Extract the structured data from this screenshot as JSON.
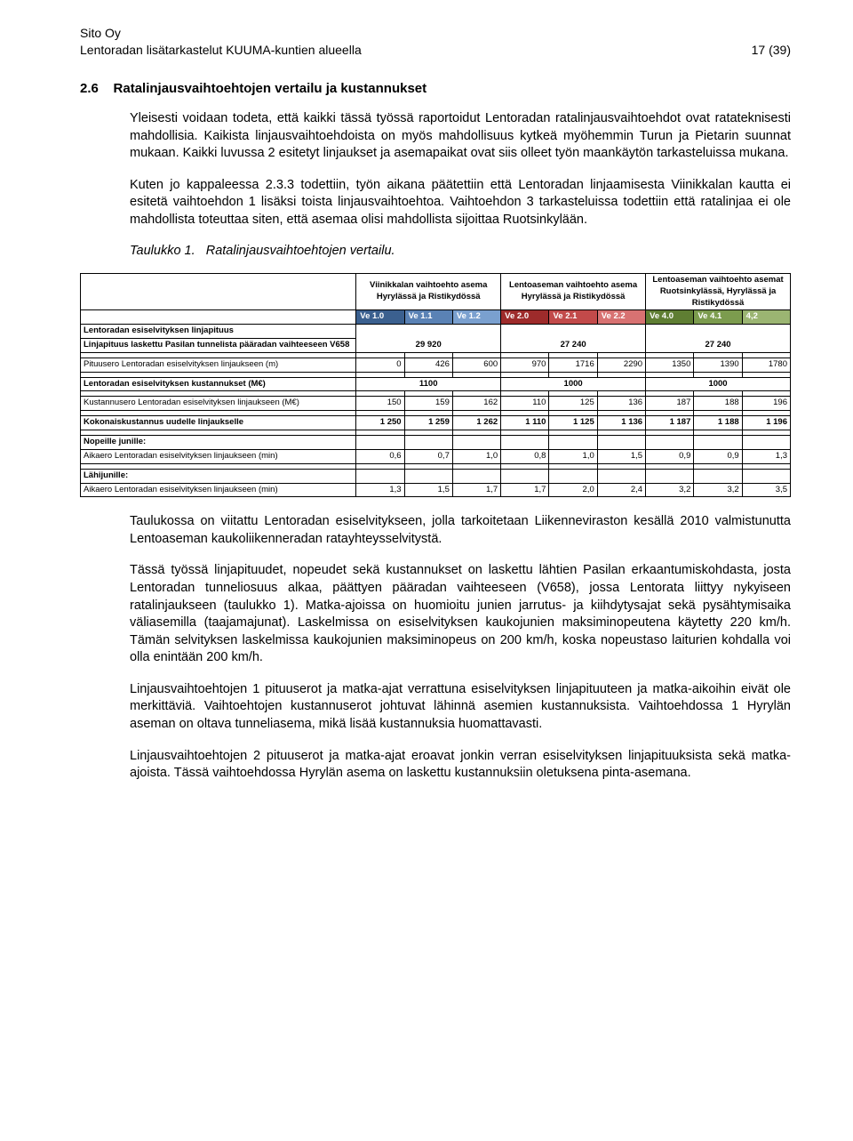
{
  "header": {
    "company": "Sito Oy",
    "subtitle": "Lentoradan lisätarkastelut KUUMA-kuntien alueella",
    "page": "17 (39)"
  },
  "section": {
    "num": "2.6",
    "title": "Ratalinjausvaihtoehtojen vertailu ja kustannukset"
  },
  "paras": {
    "p1": "Yleisesti voidaan todeta, että kaikki tässä työssä raportoidut Lentoradan ratalinjausvaihtoehdot ovat ratateknisesti mahdollisia. Kaikista linjausvaihtoehdoista on myös mahdollisuus kytkeä myöhemmin Turun ja Pietarin suunnat mukaan. Kaikki luvussa 2 esitetyt linjaukset ja asemapaikat ovat siis olleet työn maankäytön tarkasteluissa mukana.",
    "p2": "Kuten jo kappaleessa 2.3.3 todettiin, työn aikana päätettiin että Lentoradan linjaamisesta Viinikkalan kautta ei esitetä vaihtoehdon 1 lisäksi toista linjausvaihtoehtoa. Vaihtoehdon 3 tarkasteluissa todettiin että ratalinjaa ei ole mahdollista toteuttaa siten, että asemaa olisi mahdollista sijoittaa Ruotsinkylään.",
    "caption_prefix": "Taulukko 1.",
    "caption_rest": "Ratalinjausvaihtoehtojen vertailu.",
    "p3": "Taulukossa on viitattu Lentoradan esiselvitykseen, jolla tarkoitetaan Liikenneviraston kesällä 2010 valmistunutta Lentoaseman kaukoliikenneradan ratayhteysselvitystä.",
    "p4": "Tässä työssä linjapituudet, nopeudet sekä kustannukset on laskettu lähtien Pasilan erkaantumiskohdasta, josta Lentoradan tunneliosuus alkaa, päättyen pääradan vaihteeseen (V658), jossa Lentorata liittyy nykyiseen ratalinjaukseen (taulukko 1). Matka-ajoissa on huomioitu junien jarrutus- ja kiihdytysajat sekä pysähtymisaika väliasemilla (taajamajunat). Laskelmissa on esiselvityksen kaukojunien maksiminopeutena käytetty 220 km/h. Tämän selvityksen laskelmissa kaukojunien maksiminopeus on 200 km/h, koska nopeustaso laiturien kohdalla voi olla enintään 200 km/h.",
    "p5": "Linjausvaihtoehtojen 1 pituuserot ja matka-ajat verrattuna esiselvityksen linjapituuteen ja matka-aikoihin eivät ole merkittäviä. Vaihtoehtojen kustannuserot johtuvat lähinnä asemien kustannuksista. Vaihtoehdossa 1 Hyrylän aseman on oltava tunneliasema, mikä lisää kustannuksia huomattavasti.",
    "p6": "Linjausvaihtoehtojen 2 pituuserot ja matka-ajat eroavat jonkin verran esiselvityksen linjapituuksista sekä matka-ajoista. Tässä vaihtoehdossa Hyrylän asema on laskettu kustannuksiin oletuksena pinta-asemana."
  },
  "table": {
    "group_headers": {
      "g1": "Viinikkalan vaihtoehto asema Hyrylässä ja Ristikydössä",
      "g2": "Lentoaseman vaihtoehto asema Hyrylässä ja Ristikydössä",
      "g3": "Lentoaseman vaihtoehto asemat Ruotsinkylässä, Hyrylässä ja Ristikydössä"
    },
    "ve": [
      "Ve 1.0",
      "Ve 1.1",
      "Ve 1.2",
      "Ve 2.0",
      "Ve 2.1",
      "Ve 2.2",
      "Ve 4.0",
      "Ve 4.1",
      "4,2"
    ],
    "row_labels": {
      "r1a": "Lentoradan esiselvityksen linjapituus",
      "r1b": "Linjapituus laskettu Pasilan tunnelista pääradan vaihteeseen V658",
      "r2": "Pituusero Lentoradan esiselvityksen linjaukseen (m)",
      "r3": "Lentoradan esiselvityksen kustannukset (M€)",
      "r4": "Kustannusero Lentoradan esiselvityksen linjaukseen (M€)",
      "r5": "Kokonaiskustannus uudelle linjaukselle",
      "r6h": "Nopeille junille:",
      "r6": "Aikaero Lentoradan esiselvityksen linjaukseen (min)",
      "r7h": "Lähijunille:",
      "r7": "Aikaero Lentoradan esiselvityksen linjaukseen (min)"
    },
    "linjapituus": [
      "29 920",
      "27 240",
      "27 240"
    ],
    "pituusero": [
      "0",
      "426",
      "600",
      "970",
      "1716",
      "2290",
      "1350",
      "1390",
      "1780"
    ],
    "esikust": [
      "1100",
      "1000",
      "1000"
    ],
    "kustero": [
      "150",
      "159",
      "162",
      "110",
      "125",
      "136",
      "187",
      "188",
      "196"
    ],
    "kokonais": [
      "1 250",
      "1 259",
      "1 262",
      "1 110",
      "1 125",
      "1 136",
      "1 187",
      "1 188",
      "1 196"
    ],
    "nopeille": [
      "0,6",
      "0,7",
      "1,0",
      "0,8",
      "1,0",
      "1,5",
      "0,9",
      "0,9",
      "1,3"
    ],
    "lahi": [
      "1,3",
      "1,5",
      "1,7",
      "1,7",
      "2,0",
      "2,4",
      "3,2",
      "3,2",
      "3,5"
    ],
    "styling": {
      "group_colors": [
        "#3b608f",
        "#5a82b5",
        "#7aa0cf",
        "#9e2b2b",
        "#c24a4a",
        "#d87272",
        "#5f7e33",
        "#7c9c4e",
        "#9bb572"
      ],
      "font_size_pt": 7,
      "border_color": "#000000"
    }
  }
}
